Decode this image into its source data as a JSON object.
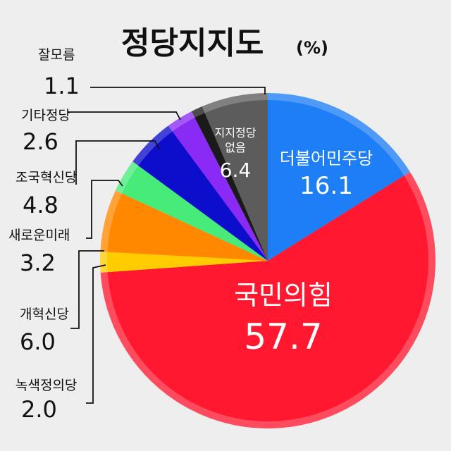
{
  "chart_data": {
    "type": "pie",
    "title": "정당지지도",
    "title_unit": "(%)",
    "categories": [
      "더불어민주당",
      "국민의힘",
      "녹색정의당",
      "개혁신당",
      "새로운미래",
      "조국혁신당",
      "기타정당",
      "잘모름",
      "지지정당 없음"
    ],
    "values": [
      16.1,
      57.7,
      2.0,
      6.0,
      3.2,
      4.8,
      2.6,
      1.1,
      6.4
    ],
    "value_labels": [
      "16.1",
      "57.7",
      "2.0",
      "6.0",
      "3.2",
      "4.8",
      "2.6",
      "1.1",
      "6.4"
    ],
    "colors": [
      "#1e7ef5",
      "#ff1830",
      "#ffcc00",
      "#ff8800",
      "#47eb7a",
      "#0d0dcc",
      "#8a2bf5",
      "#1a1a1a",
      "#5c5c5c"
    ],
    "inside_label_lines": {
      "지지정당 없음": [
        "지지정당",
        "없음"
      ]
    },
    "start_at": "12 o'clock",
    "direction": "clockwise"
  }
}
